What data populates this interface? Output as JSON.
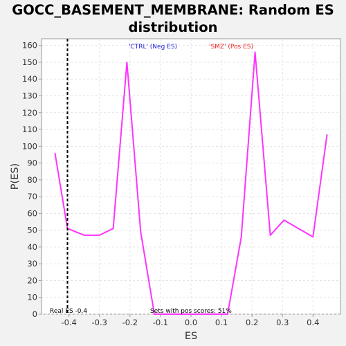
{
  "chart_data": {
    "type": "line",
    "title": "GOCC_BASEMENT_MEMBRANE: Random ES distribution",
    "xlabel": "ES",
    "ylabel": "P(ES)",
    "xlim": [
      -0.49,
      0.49
    ],
    "ylim": [
      0,
      164
    ],
    "xticks": [
      -0.4,
      -0.3,
      -0.2,
      -0.1,
      0.0,
      0.1,
      0.2,
      0.3,
      0.4
    ],
    "xtick_labels": [
      "-0.4",
      "-0.3",
      "-0.2",
      "-0.1",
      "0.0",
      "0.1",
      "0.2",
      "0.3",
      "0.4"
    ],
    "yticks": [
      0,
      10,
      20,
      30,
      40,
      50,
      60,
      70,
      80,
      90,
      100,
      110,
      120,
      130,
      140,
      150,
      160
    ],
    "grid": true,
    "series": [
      {
        "color": "#ff33ff",
        "x": [
          -0.446,
          -0.405,
          -0.35,
          -0.3,
          -0.255,
          -0.21,
          -0.165,
          -0.12,
          -0.075,
          0.12,
          0.165,
          0.21,
          0.26,
          0.305,
          0.4,
          0.446
        ],
        "y": [
          96,
          51,
          47,
          47,
          51,
          150,
          49,
          0,
          0,
          0,
          46,
          156,
          47,
          56,
          46,
          107
        ]
      }
    ],
    "real_es": {
      "x": -0.405,
      "label": "Real ES -0.4",
      "color": "#000000"
    },
    "annotations": [
      {
        "text": "'CTRL' (Neg ES)",
        "color": "#2222dd"
      },
      {
        "text": "'SMZ' (Pos ES)",
        "color": "#ee2222"
      },
      {
        "text": "Sets with pos scores: 51%",
        "color": "#000000"
      }
    ]
  }
}
